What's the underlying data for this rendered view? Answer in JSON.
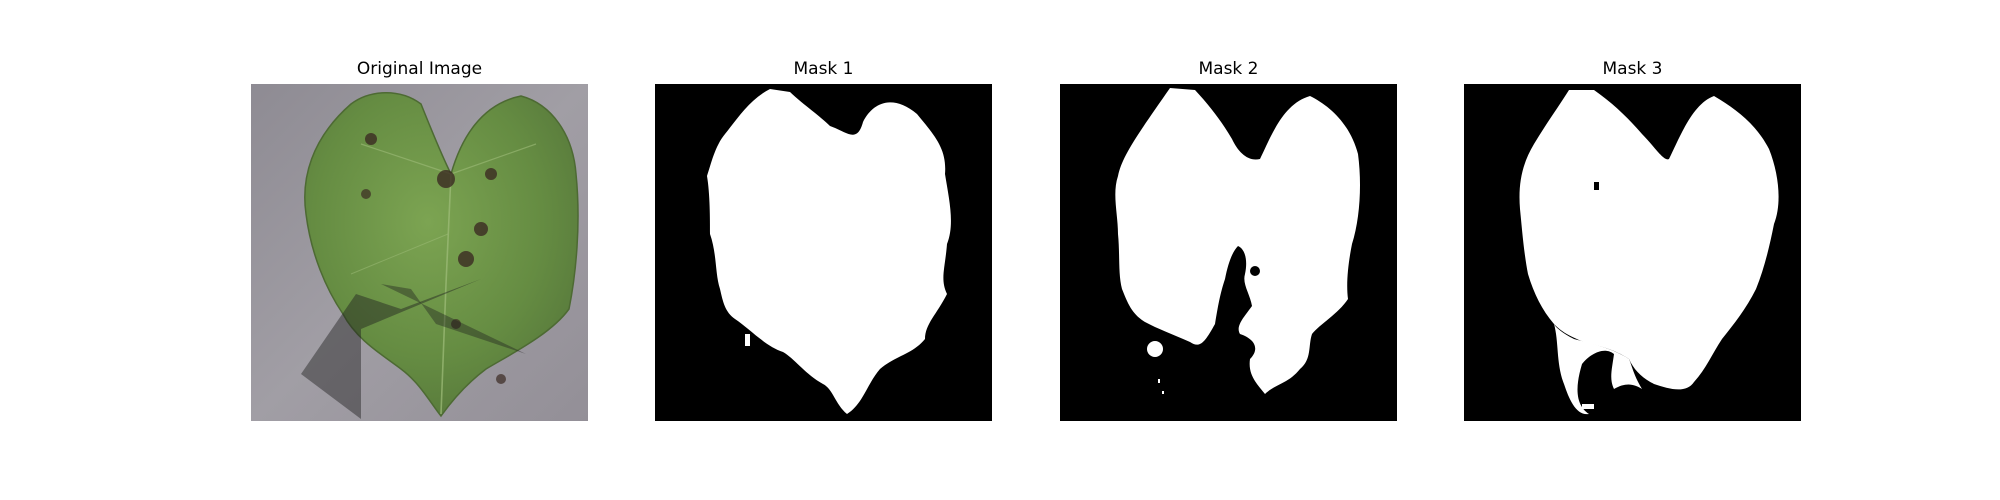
{
  "figure": {
    "panels": [
      {
        "title": "Original Image",
        "image": "leaf-photo"
      },
      {
        "title": "Mask 1",
        "image": "binary-mask"
      },
      {
        "title": "Mask 2",
        "image": "binary-mask"
      },
      {
        "title": "Mask 3",
        "image": "binary-mask"
      }
    ]
  },
  "colors": {
    "background": "#ffffff",
    "mask_foreground": "#ffffff",
    "mask_background": "#000000",
    "leaf_green": "#6e9449",
    "surface_gray": "#9a979c"
  }
}
